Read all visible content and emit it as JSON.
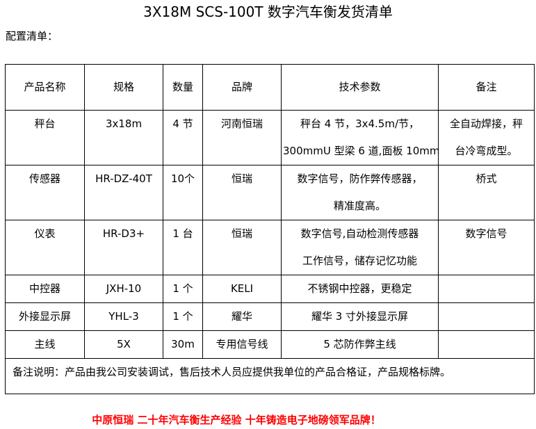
{
  "title": "3X18M SCS-100T 数字汽车衡发货清单",
  "subtitle": "配置清单：",
  "headers": [
    "产品名称",
    "规格",
    "数量",
    "品牌",
    "技术参数",
    "备注"
  ],
  "rows": [
    {
      "name": "秤台",
      "spec": "3x18m",
      "qty": "4 节",
      "brand": "河南恒瑞",
      "tech": [
        "秤台 4 节，3x4.5m/节，",
        "300mmU 型梁 6 道,面板 10mm"
      ],
      "remark": [
        "全自动焊接，秤",
        "台冷弯成型。"
      ]
    },
    {
      "name": "传感器",
      "spec": "HR-DZ-40T",
      "qty": "10个",
      "brand": "恒瑞",
      "tech": [
        "数字信号，防作弊传感器，",
        "精准度高。"
      ],
      "remark": [
        "桥式"
      ]
    },
    {
      "name": "仪表",
      "spec": "HR-D3+",
      "qty": "1 台",
      "brand": "恒瑞",
      "tech": [
        "数字信号,自动检测传感器",
        "工作信号，储存记忆功能"
      ],
      "remark": [
        "数字信号"
      ]
    },
    {
      "name": "中控器",
      "spec": "JXH-10",
      "qty": "1 个",
      "brand": "KELI",
      "tech": [
        "不锈钢中控器，更稳定"
      ],
      "remark": []
    },
    {
      "name": "外接显示屏",
      "spec": "YHL-3",
      "qty": "1 个",
      "brand": "耀华",
      "tech": [
        "耀华 3 寸外接显示屏"
      ],
      "remark": []
    },
    {
      "name": "主线",
      "spec": "5X",
      "qty": "30m",
      "brand": "专用信号线",
      "tech": [
        "5 芯防作弊主线"
      ],
      "remark": []
    }
  ],
  "note": "备注说明：产品由我公司安装调试，售后技术人员应提供我单位的产品合格证，产品规格标牌。",
  "slogan": "中原恒瑞 二十年汽车衡生产经验 十年铸造电子地磅领军品牌！",
  "colors": {
    "slogan": "#ff0000"
  }
}
